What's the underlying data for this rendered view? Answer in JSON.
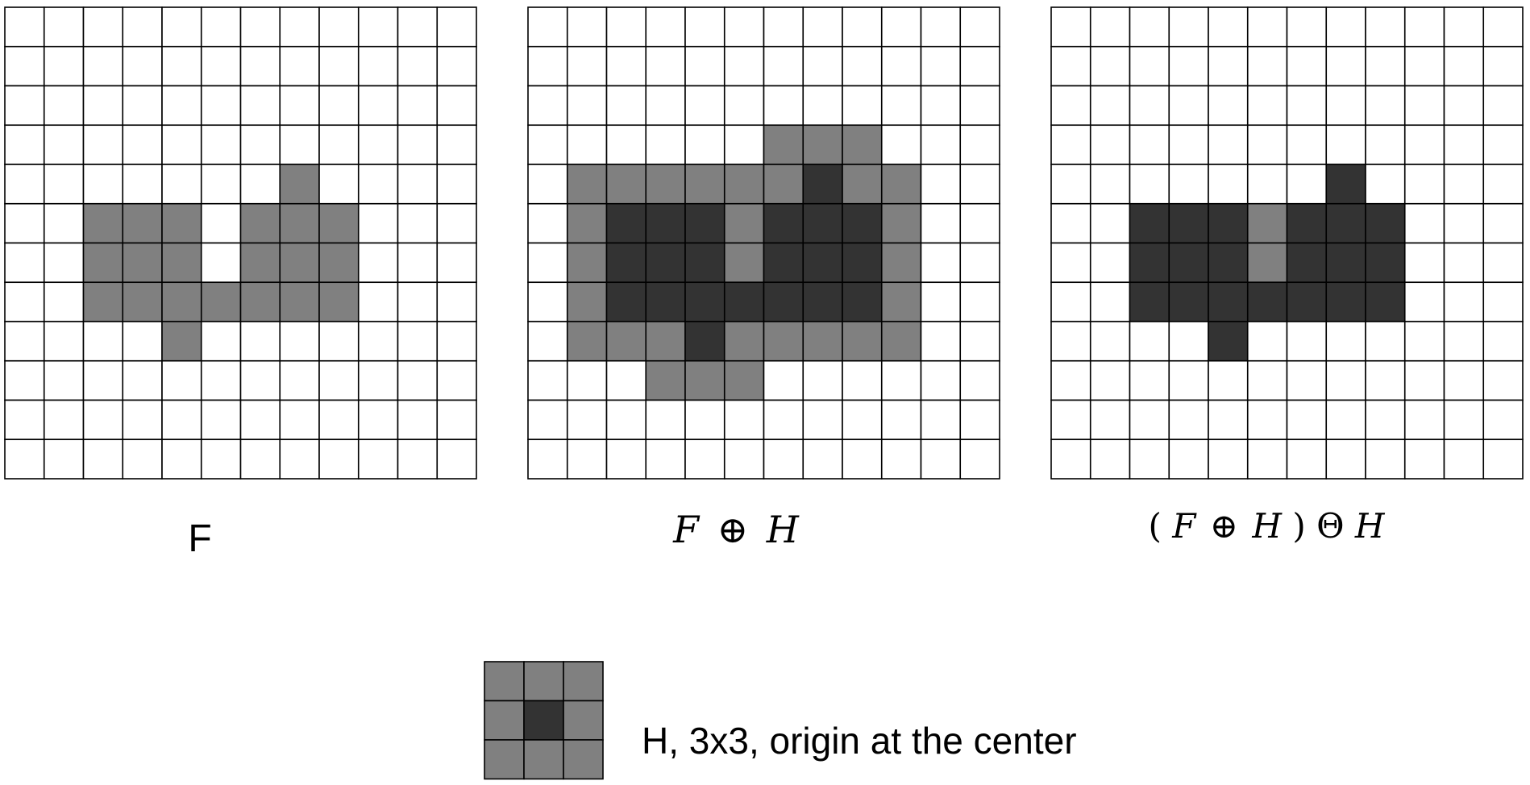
{
  "colors": {
    "empty": "#ffffff",
    "gray": "#808080",
    "dark": "#333333",
    "grid_line": "#000000"
  },
  "grid_size": 12,
  "legend": {
    "values": "0 = empty, 1 = gray, 2 = dark (origin)"
  },
  "grids": [
    {
      "id": "F",
      "label": "F",
      "cells": [
        [
          0,
          0,
          0,
          0,
          0,
          0,
          0,
          0,
          0,
          0,
          0,
          0
        ],
        [
          0,
          0,
          0,
          0,
          0,
          0,
          0,
          0,
          0,
          0,
          0,
          0
        ],
        [
          0,
          0,
          0,
          0,
          0,
          0,
          0,
          0,
          0,
          0,
          0,
          0
        ],
        [
          0,
          0,
          0,
          0,
          0,
          0,
          0,
          0,
          0,
          0,
          0,
          0
        ],
        [
          0,
          0,
          0,
          0,
          0,
          0,
          0,
          1,
          0,
          0,
          0,
          0
        ],
        [
          0,
          0,
          1,
          1,
          1,
          0,
          1,
          1,
          1,
          0,
          0,
          0
        ],
        [
          0,
          0,
          1,
          1,
          1,
          0,
          1,
          1,
          1,
          0,
          0,
          0
        ],
        [
          0,
          0,
          1,
          1,
          1,
          1,
          1,
          1,
          1,
          0,
          0,
          0
        ],
        [
          0,
          0,
          0,
          0,
          1,
          0,
          0,
          0,
          0,
          0,
          0,
          0
        ],
        [
          0,
          0,
          0,
          0,
          0,
          0,
          0,
          0,
          0,
          0,
          0,
          0
        ],
        [
          0,
          0,
          0,
          0,
          0,
          0,
          0,
          0,
          0,
          0,
          0,
          0
        ],
        [
          0,
          0,
          0,
          0,
          0,
          0,
          0,
          0,
          0,
          0,
          0,
          0
        ]
      ]
    },
    {
      "id": "F-dilate-H",
      "label_parts": [
        "F",
        "⊕",
        "H"
      ],
      "cells": [
        [
          0,
          0,
          0,
          0,
          0,
          0,
          0,
          0,
          0,
          0,
          0,
          0
        ],
        [
          0,
          0,
          0,
          0,
          0,
          0,
          0,
          0,
          0,
          0,
          0,
          0
        ],
        [
          0,
          0,
          0,
          0,
          0,
          0,
          0,
          0,
          0,
          0,
          0,
          0
        ],
        [
          0,
          0,
          0,
          0,
          0,
          0,
          1,
          1,
          1,
          0,
          0,
          0
        ],
        [
          0,
          1,
          1,
          1,
          1,
          1,
          1,
          2,
          1,
          1,
          0,
          0
        ],
        [
          0,
          1,
          2,
          2,
          2,
          1,
          2,
          2,
          2,
          1,
          0,
          0
        ],
        [
          0,
          1,
          2,
          2,
          2,
          1,
          2,
          2,
          2,
          1,
          0,
          0
        ],
        [
          0,
          1,
          2,
          2,
          2,
          2,
          2,
          2,
          2,
          1,
          0,
          0
        ],
        [
          0,
          1,
          1,
          1,
          2,
          1,
          1,
          1,
          1,
          1,
          0,
          0
        ],
        [
          0,
          0,
          0,
          1,
          1,
          1,
          0,
          0,
          0,
          0,
          0,
          0
        ],
        [
          0,
          0,
          0,
          0,
          0,
          0,
          0,
          0,
          0,
          0,
          0,
          0
        ],
        [
          0,
          0,
          0,
          0,
          0,
          0,
          0,
          0,
          0,
          0,
          0,
          0
        ]
      ]
    },
    {
      "id": "F-dilate-H-erode-H",
      "label_parts": [
        "(",
        "F",
        "⊕",
        "H",
        ")",
        "Θ",
        "H"
      ],
      "cells": [
        [
          0,
          0,
          0,
          0,
          0,
          0,
          0,
          0,
          0,
          0,
          0,
          0
        ],
        [
          0,
          0,
          0,
          0,
          0,
          0,
          0,
          0,
          0,
          0,
          0,
          0
        ],
        [
          0,
          0,
          0,
          0,
          0,
          0,
          0,
          0,
          0,
          0,
          0,
          0
        ],
        [
          0,
          0,
          0,
          0,
          0,
          0,
          0,
          0,
          0,
          0,
          0,
          0
        ],
        [
          0,
          0,
          0,
          0,
          0,
          0,
          0,
          2,
          0,
          0,
          0,
          0
        ],
        [
          0,
          0,
          2,
          2,
          2,
          1,
          2,
          2,
          2,
          0,
          0,
          0
        ],
        [
          0,
          0,
          2,
          2,
          2,
          1,
          2,
          2,
          2,
          0,
          0,
          0
        ],
        [
          0,
          0,
          2,
          2,
          2,
          2,
          2,
          2,
          2,
          0,
          0,
          0
        ],
        [
          0,
          0,
          0,
          0,
          2,
          0,
          0,
          0,
          0,
          0,
          0,
          0
        ],
        [
          0,
          0,
          0,
          0,
          0,
          0,
          0,
          0,
          0,
          0,
          0,
          0
        ],
        [
          0,
          0,
          0,
          0,
          0,
          0,
          0,
          0,
          0,
          0,
          0,
          0
        ],
        [
          0,
          0,
          0,
          0,
          0,
          0,
          0,
          0,
          0,
          0,
          0,
          0
        ]
      ]
    }
  ],
  "structuring_element": {
    "label": "H, 3x3, origin at the center",
    "cells": [
      [
        1,
        1,
        1
      ],
      [
        1,
        2,
        1
      ],
      [
        1,
        1,
        1
      ]
    ]
  }
}
